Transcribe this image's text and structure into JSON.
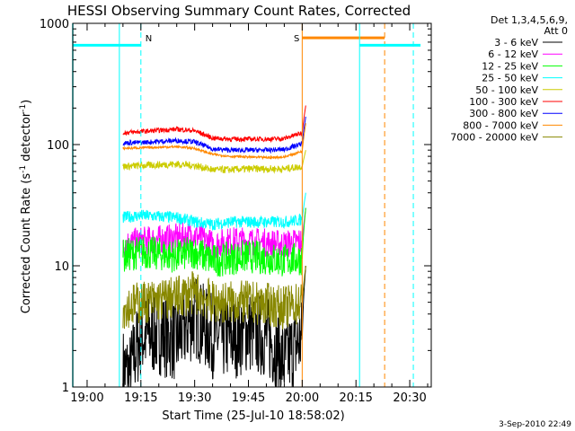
{
  "chart_data": {
    "type": "line",
    "title": "HESSI Observing Summary Count Rates, Corrected",
    "xlabel": "Start Time (25-Jul-10 18:58:02)",
    "ylabel_main": "Corrected Count Rate (s",
    "ylabel_sup1": "-1",
    "ylabel_mid": " detector",
    "ylabel_sup2": "-1",
    "ylabel_end": ")",
    "y_scale": "log",
    "ylim": [
      1,
      1000
    ],
    "xlim": [
      "18:56",
      "20:36"
    ],
    "x_ticks": [
      {
        "t": "19:00",
        "label": "19:00"
      },
      {
        "t": "19:15",
        "label": "19:15"
      },
      {
        "t": "19:30",
        "label": "19:30"
      },
      {
        "t": "19:45",
        "label": "19:45"
      },
      {
        "t": "20:00",
        "label": "20:00"
      },
      {
        "t": "20:15",
        "label": "20:15"
      },
      {
        "t": "20:30",
        "label": "20:30"
      }
    ],
    "y_ticks": [
      {
        "v": 1,
        "label": "1"
      },
      {
        "v": 10,
        "label": "10"
      },
      {
        "v": 100,
        "label": "100"
      },
      {
        "v": 1000,
        "label": "1000"
      }
    ],
    "legend_header_1": "Det 1,3,4,5,6,9,",
    "legend_header_2": "Att 0",
    "legend_position": "right, outside plot",
    "series": [
      {
        "name": "3 - 6 keV",
        "color": "#000000",
        "base": 2.5,
        "jitter": 0.35,
        "x": [
          "19:10",
          "19:12",
          "19:15",
          "19:20",
          "19:25",
          "19:30",
          "19:35",
          "19:40",
          "19:45",
          "19:50",
          "19:55",
          "20:00",
          "20:01"
        ],
        "values": [
          1.4,
          1.3,
          2.6,
          2.8,
          2.4,
          3.8,
          2.6,
          2.5,
          2.9,
          2.6,
          1.6,
          2.5,
          10
        ]
      },
      {
        "name": "6 - 12 keV",
        "color": "#ff00ff",
        "base": 16,
        "jitter": 0.12,
        "x": [
          "19:10",
          "19:15",
          "19:20",
          "19:25",
          "19:30",
          "19:35",
          "19:40",
          "19:45",
          "19:50",
          "19:55",
          "20:00",
          "20:01"
        ],
        "values": [
          15,
          16,
          16.5,
          17,
          18,
          15,
          16,
          16,
          15.5,
          15,
          16,
          30
        ]
      },
      {
        "name": "12 - 25 keV",
        "color": "#00ff00",
        "base": 12,
        "jitter": 0.14,
        "x": [
          "19:10",
          "19:15",
          "19:20",
          "19:25",
          "19:30",
          "19:35",
          "19:40",
          "19:45",
          "19:50",
          "19:55",
          "20:00",
          "20:01"
        ],
        "values": [
          12,
          13,
          12.5,
          12,
          13,
          11,
          11.5,
          12,
          11.5,
          11,
          11.5,
          30
        ]
      },
      {
        "name": "25 - 50 keV",
        "color": "#00ffff",
        "base": 25,
        "jitter": 0.05,
        "x": [
          "19:10",
          "19:15",
          "19:20",
          "19:25",
          "19:30",
          "19:35",
          "19:40",
          "19:45",
          "19:50",
          "19:55",
          "20:00",
          "20:01"
        ],
        "values": [
          25,
          26,
          25.5,
          25,
          23,
          22,
          23,
          23,
          23,
          23,
          24,
          40
        ]
      },
      {
        "name": "50 - 100 keV",
        "color": "#cccc00",
        "base": 66,
        "jitter": 0.03,
        "x": [
          "19:10",
          "19:15",
          "19:20",
          "19:25",
          "19:30",
          "19:35",
          "19:40",
          "19:45",
          "19:50",
          "19:55",
          "20:00",
          "20:01"
        ],
        "values": [
          66,
          67,
          68,
          69,
          67,
          62,
          62,
          63,
          63,
          63,
          66,
          90
        ]
      },
      {
        "name": "100 - 300 keV",
        "color": "#ff0000",
        "base": 128,
        "jitter": 0.02,
        "x": [
          "19:10",
          "19:15",
          "19:20",
          "19:25",
          "19:30",
          "19:35",
          "19:40",
          "19:45",
          "19:50",
          "19:55",
          "20:00",
          "20:01"
        ],
        "values": [
          125,
          128,
          131,
          134,
          130,
          113,
          111,
          111,
          111,
          112,
          125,
          210
        ]
      },
      {
        "name": "300 - 800 keV",
        "color": "#0000ff",
        "base": 104,
        "jitter": 0.02,
        "x": [
          "19:10",
          "19:15",
          "19:20",
          "19:25",
          "19:30",
          "19:35",
          "19:40",
          "19:45",
          "19:50",
          "19:55",
          "20:00",
          "20:01"
        ],
        "values": [
          103,
          104,
          106,
          108,
          105,
          92,
          90,
          90,
          90,
          91,
          102,
          170
        ]
      },
      {
        "name": "800 - 7000 keV",
        "color": "#ff8800",
        "base": 90,
        "jitter": 0.01,
        "x": [
          "19:10",
          "19:15",
          "19:20",
          "19:25",
          "19:30",
          "19:35",
          "19:40",
          "19:45",
          "19:50",
          "19:55",
          "20:00",
          "20:01"
        ],
        "values": [
          93,
          94,
          95,
          96,
          93,
          83,
          80,
          79,
          78,
          79,
          88,
          150
        ]
      },
      {
        "name": "7000 - 20000 keV",
        "color": "#888800",
        "base": 4.8,
        "jitter": 0.18,
        "x": [
          "19:10",
          "19:15",
          "19:20",
          "19:25",
          "19:30",
          "19:35",
          "19:40",
          "19:45",
          "19:50",
          "19:55",
          "20:00",
          "20:01"
        ],
        "values": [
          4.5,
          5,
          5.2,
          5.5,
          6,
          5,
          5,
          5,
          4.8,
          4.5,
          5,
          10
        ]
      }
    ],
    "markers": [
      {
        "label": "N",
        "color": "#00ffff",
        "bar_from": "18:56",
        "bar_to": "19:15",
        "bar_value": 660,
        "solid_at": "19:09",
        "dashed_at": "19:15",
        "label_at": "19:15"
      },
      {
        "label": "S",
        "color": "#ff8800",
        "bar_from": "20:00",
        "bar_to": "20:23",
        "bar_value": 760,
        "solid_at": "20:00",
        "dashed_at": "20:23",
        "label_at": "20:00"
      },
      {
        "label": "",
        "color": "#00ffff",
        "bar_from": "20:16",
        "bar_to": "20:33",
        "bar_value": 660,
        "solid_at": "20:16",
        "dashed_at": "20:31",
        "label_at": ""
      }
    ],
    "cyan_vertical_at": "18:56",
    "data_start": "19:10",
    "data_end": "20:01"
  },
  "timestamp": "3-Sep-2010 22:49"
}
